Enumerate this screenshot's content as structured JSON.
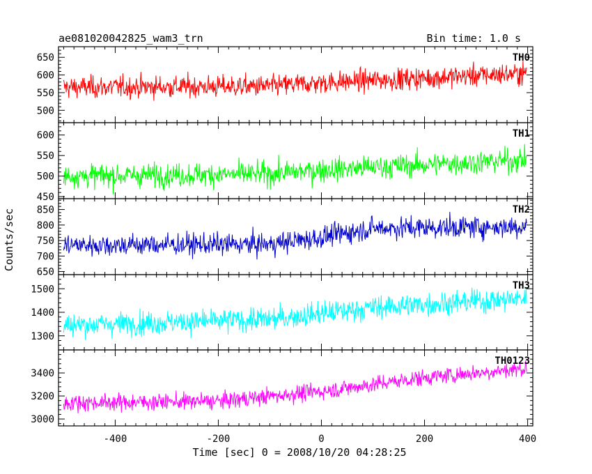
{
  "chart_data": {
    "type": "line",
    "title": "ae081020042825_wam3_trn",
    "bin_time": "Bin time: 1.0 s",
    "xlabel": "Time [sec] 0 = 2008/10/20 04:28:25",
    "ylabel": "Counts/sec",
    "xlim": [
      -510,
      410
    ],
    "x_ticks": [
      -400,
      -200,
      0,
      200,
      400
    ],
    "series": [
      {
        "name": "TH0",
        "color": "#ff0000",
        "ylim": [
          465,
          680
        ],
        "y_ticks": [
          500,
          550,
          600,
          650
        ],
        "trend": [
          [
            -500,
            565
          ],
          [
            -100,
            568
          ],
          [
            0,
            578
          ],
          [
            400,
            605
          ]
        ],
        "noise": 28
      },
      {
        "name": "TH1",
        "color": "#00ff00",
        "ylim": [
          445,
          630
        ],
        "y_ticks": [
          450,
          500,
          550,
          600
        ],
        "trend": [
          [
            -500,
            500
          ],
          [
            -100,
            505
          ],
          [
            0,
            515
          ],
          [
            400,
            540
          ]
        ],
        "noise": 26
      },
      {
        "name": "TH2",
        "color": "#0000cc",
        "ylim": [
          640,
          885
        ],
        "y_ticks": [
          650,
          700,
          750,
          800,
          850
        ],
        "trend": [
          [
            -500,
            735
          ],
          [
            -100,
            738
          ],
          [
            0,
            760
          ],
          [
            100,
            790
          ],
          [
            400,
            795
          ]
        ],
        "noise": 32
      },
      {
        "name": "TH3",
        "color": "#00ffff",
        "ylim": [
          1240,
          1560
        ],
        "y_ticks": [
          1300,
          1400,
          1500
        ],
        "trend": [
          [
            -500,
            1345
          ],
          [
            -100,
            1370
          ],
          [
            0,
            1395
          ],
          [
            100,
            1420
          ],
          [
            400,
            1460
          ]
        ],
        "noise": 45
      },
      {
        "name": "TH0123",
        "color": "#ff00ff",
        "ylim": [
          2940,
          3600
        ],
        "y_ticks": [
          3000,
          3200,
          3400
        ],
        "trend": [
          [
            -500,
            3140
          ],
          [
            -200,
            3155
          ],
          [
            0,
            3240
          ],
          [
            200,
            3360
          ],
          [
            400,
            3440
          ]
        ],
        "noise": 65
      }
    ]
  }
}
